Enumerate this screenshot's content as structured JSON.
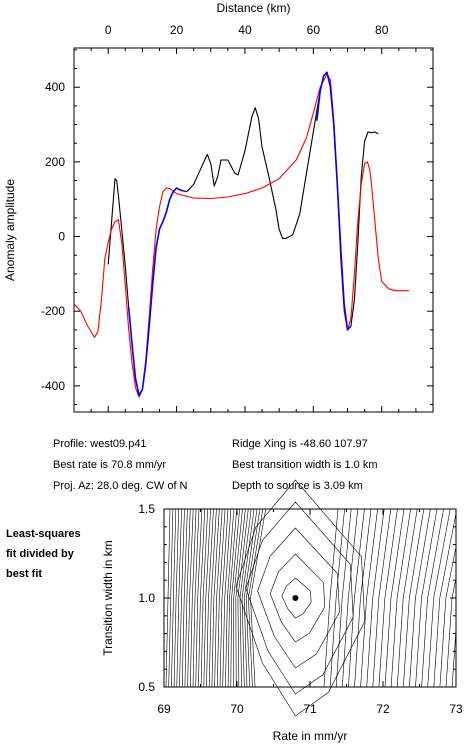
{
  "info": {
    "profile": "Profile: west09.p41",
    "best_rate": "Best rate is 70.8 mm/yr",
    "proj_az": "Proj. Az: 28.0 deg. CW of N",
    "ridge_xing": "Ridge Xing is -48.60 107.97",
    "best_width": "Best transition width is 1.0 km",
    "depth": "Depth to source is   3.09 km"
  },
  "side_note": "Least-squares\nfit divided by\nbest fit",
  "chart_data": [
    {
      "type": "line",
      "xlabel": "Distance (km)",
      "ylabel": "Anomaly amplitude",
      "xlim": [
        -10,
        95
      ],
      "ylim": [
        -470,
        505
      ],
      "xticks": [
        0,
        20,
        40,
        60,
        80
      ],
      "yticks": [
        -400,
        -200,
        0,
        200,
        400
      ],
      "series": [
        {
          "color": "#000000",
          "points": [
            [
              0,
              -75
            ],
            [
              1,
              40
            ],
            [
              2,
              155
            ],
            [
              2.5,
              150
            ],
            [
              3,
              110
            ],
            [
              4,
              15
            ],
            [
              5,
              -80
            ],
            [
              6,
              -190
            ],
            [
              7,
              -290
            ],
            [
              8,
              -380
            ],
            [
              9,
              -425
            ],
            [
              10,
              -410
            ],
            [
              11,
              -340
            ],
            [
              12,
              -240
            ],
            [
              13,
              -130
            ],
            [
              14,
              -30
            ],
            [
              15,
              20
            ],
            [
              16,
              40
            ],
            [
              17,
              65
            ],
            [
              18,
              100
            ],
            [
              19,
              120
            ],
            [
              20,
              130
            ],
            [
              21,
              125
            ],
            [
              23,
              120
            ],
            [
              25,
              140
            ],
            [
              27,
              180
            ],
            [
              29,
              220
            ],
            [
              30,
              195
            ],
            [
              31,
              135
            ],
            [
              32,
              160
            ],
            [
              33,
              205
            ],
            [
              35,
              205
            ],
            [
              37,
              170
            ],
            [
              38,
              165
            ],
            [
              40,
              230
            ],
            [
              42,
              320
            ],
            [
              43,
              345
            ],
            [
              44,
              315
            ],
            [
              45,
              240
            ],
            [
              47,
              160
            ],
            [
              49,
              75
            ],
            [
              50,
              20
            ],
            [
              51,
              -5
            ],
            [
              52,
              -5
            ],
            [
              54,
              5
            ],
            [
              56,
              60
            ],
            [
              58,
              170
            ],
            [
              60,
              280
            ],
            [
              62,
              390
            ],
            [
              63,
              430
            ],
            [
              64,
              440
            ],
            [
              65,
              400
            ],
            [
              66,
              300
            ],
            [
              67,
              140
            ],
            [
              68,
              -30
            ],
            [
              69,
              -180
            ],
            [
              70,
              -250
            ],
            [
              71,
              -240
            ],
            [
              72,
              -170
            ],
            [
              73,
              -20
            ],
            [
              74,
              160
            ],
            [
              75,
              255
            ],
            [
              76,
              280
            ],
            [
              77,
              278
            ],
            [
              78,
              280
            ],
            [
              79,
              275
            ]
          ]
        },
        {
          "color": "#ff0000",
          "points": [
            [
              -10,
              -180
            ],
            [
              -8,
              -200
            ],
            [
              -6,
              -240
            ],
            [
              -4,
              -270
            ],
            [
              -3,
              -255
            ],
            [
              -2,
              -170
            ],
            [
              -1,
              -60
            ],
            [
              0,
              -15
            ],
            [
              1,
              20
            ],
            [
              2,
              40
            ],
            [
              3,
              45
            ],
            [
              4,
              -20
            ],
            [
              5,
              -130
            ],
            [
              6,
              -250
            ],
            [
              7,
              -340
            ],
            [
              8,
              -405
            ],
            [
              9,
              -430
            ],
            [
              10,
              -410
            ],
            [
              11,
              -330
            ],
            [
              12,
              -215
            ],
            [
              13,
              -90
            ],
            [
              14,
              20
            ],
            [
              15,
              80
            ],
            [
              16,
              120
            ],
            [
              17,
              130
            ],
            [
              18,
              128
            ],
            [
              20,
              115
            ],
            [
              25,
              103
            ],
            [
              30,
              102
            ],
            [
              35,
              106
            ],
            [
              40,
              115
            ],
            [
              45,
              130
            ],
            [
              50,
              155
            ],
            [
              55,
              205
            ],
            [
              58,
              265
            ],
            [
              60,
              330
            ],
            [
              62,
              400
            ],
            [
              64,
              435
            ],
            [
              65,
              420
            ],
            [
              66,
              310
            ],
            [
              67,
              140
            ],
            [
              68,
              -60
            ],
            [
              69,
              -200
            ],
            [
              70,
              -250
            ],
            [
              71,
              -220
            ],
            [
              72,
              -100
            ],
            [
              73,
              40
            ],
            [
              74,
              140
            ],
            [
              75,
              195
            ],
            [
              75.8,
              200
            ],
            [
              76.5,
              180
            ],
            [
              77,
              140
            ],
            [
              78,
              40
            ],
            [
              79,
              -60
            ],
            [
              80,
              -120
            ],
            [
              82,
              -140
            ],
            [
              84,
              -145
            ],
            [
              88,
              -145
            ]
          ]
        },
        {
          "color": "#0000ff",
          "points": [
            [
              6,
              -190
            ],
            [
              7,
              -290
            ],
            [
              8,
              -380
            ],
            [
              9,
              -425
            ],
            [
              10,
              -410
            ],
            [
              11,
              -340
            ],
            [
              12,
              -240
            ],
            [
              13,
              -130
            ],
            [
              14,
              -30
            ],
            [
              15,
              20
            ],
            [
              16,
              40
            ],
            [
              17,
              65
            ],
            [
              18,
              100
            ],
            [
              19,
              120
            ],
            [
              20,
              130
            ],
            [
              21,
              125
            ],
            [
              22,
              122
            ]
          ]
        },
        {
          "color": "#0000ff",
          "points": [
            [
              61,
              310
            ],
            [
              62,
              390
            ],
            [
              63,
              430
            ],
            [
              64,
              440
            ],
            [
              65,
              400
            ],
            [
              66,
              300
            ],
            [
              67,
              140
            ],
            [
              68,
              -30
            ],
            [
              69,
              -180
            ],
            [
              70,
              -250
            ],
            [
              71,
              -240
            ]
          ]
        }
      ]
    },
    {
      "type": "contour",
      "xlabel": "Rate in mm/yr",
      "ylabel": "Transition width in km",
      "xlim": [
        69,
        73
      ],
      "ylim": [
        0.5,
        1.5
      ],
      "xticks": [
        69,
        70,
        71,
        72,
        73
      ],
      "yticks": [
        0.5,
        1.0,
        1.5
      ],
      "minimum": {
        "x": 70.8,
        "y": 1.0
      }
    }
  ]
}
